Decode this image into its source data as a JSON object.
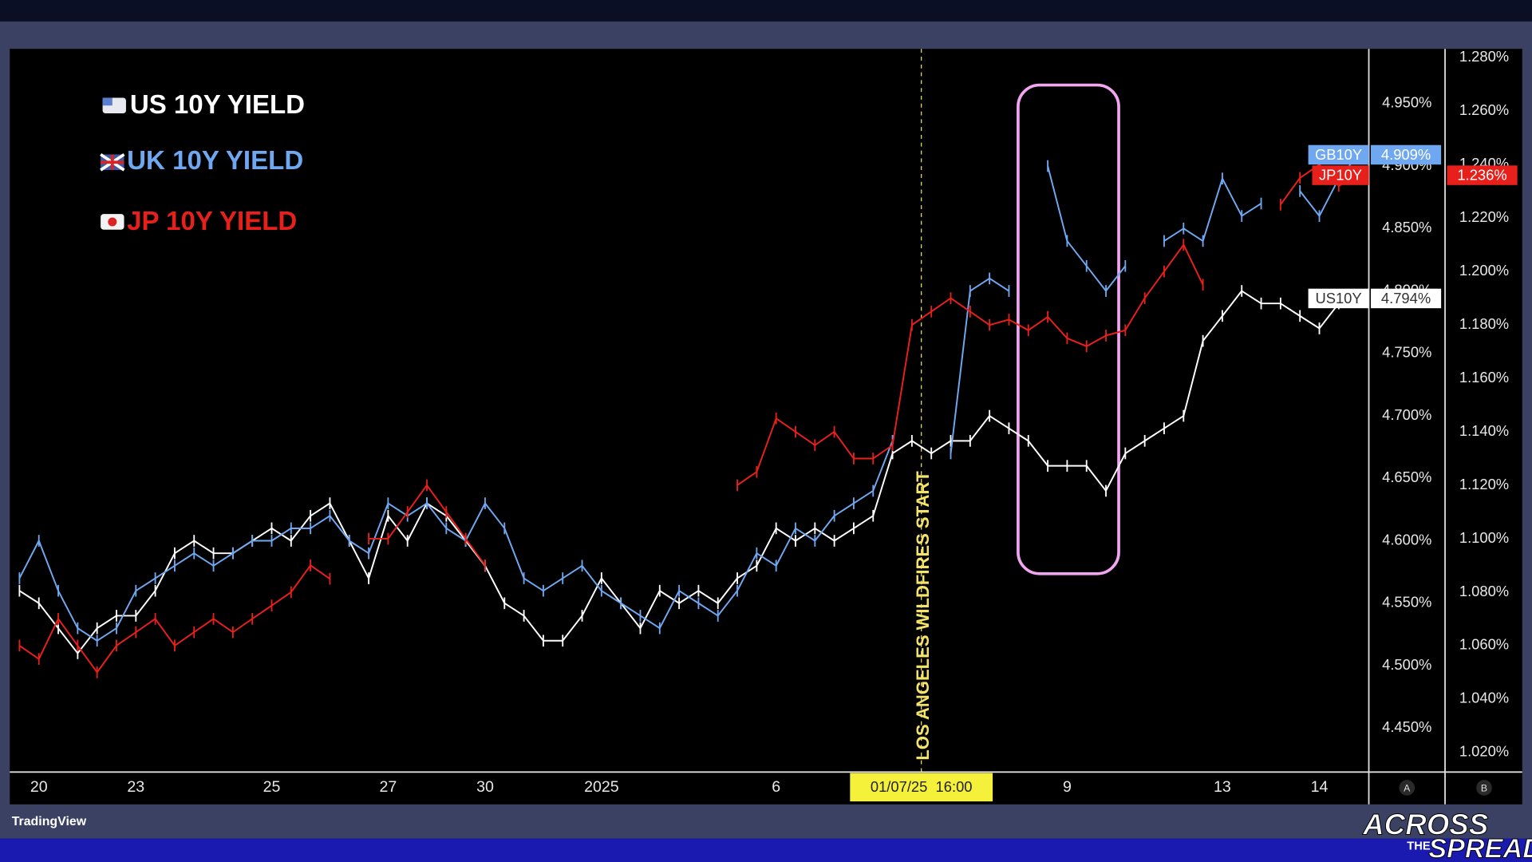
{
  "chart_data": {
    "type": "line",
    "categories": [
      null,
      "20",
      null,
      null,
      null,
      null,
      "23",
      null,
      null,
      null,
      null,
      null,
      null,
      "25",
      null,
      null,
      null,
      null,
      null,
      "27",
      null,
      null,
      null,
      null,
      "30",
      null,
      null,
      null,
      null,
      null,
      "2025",
      null,
      null,
      null,
      null,
      null,
      null,
      null,
      null,
      "6",
      null,
      null,
      null,
      null,
      null,
      null,
      null,
      null,
      null,
      null,
      null,
      null,
      null,
      null,
      "9",
      null,
      null,
      null,
      null,
      null,
      null,
      null,
      "13",
      null,
      null,
      null,
      null,
      "14",
      null,
      null
    ],
    "series": [
      {
        "name": "US 10Y YIELD",
        "tag": "US10Y",
        "last_label": "4.794%",
        "color": "#ffffff",
        "tag_text": "#333333",
        "axis": "y",
        "values": [
          4.56,
          4.55,
          4.53,
          4.51,
          4.53,
          4.54,
          4.54,
          4.56,
          4.59,
          4.6,
          4.59,
          4.59,
          4.6,
          4.61,
          4.6,
          4.62,
          4.63,
          4.6,
          4.57,
          4.62,
          4.6,
          4.63,
          4.62,
          4.6,
          4.58,
          4.55,
          4.54,
          4.52,
          4.52,
          4.54,
          4.57,
          4.55,
          4.53,
          4.56,
          4.55,
          4.56,
          4.55,
          4.57,
          4.58,
          4.61,
          4.6,
          4.61,
          4.6,
          4.61,
          4.62,
          4.67,
          4.68,
          4.67,
          4.68,
          4.68,
          4.7,
          4.69,
          4.68,
          4.66,
          4.66,
          4.66,
          4.64,
          4.67,
          4.68,
          4.69,
          4.7,
          4.76,
          4.78,
          4.8,
          4.79,
          4.79,
          4.78,
          4.77,
          4.79,
          4.794
        ]
      },
      {
        "name": "UK 10Y YIELD",
        "tag": "GB10Y",
        "last_label": "4.909%",
        "color": "#6fa8f0",
        "tag_text": "#ffffff",
        "axis": "y",
        "values": [
          4.57,
          4.6,
          4.56,
          4.53,
          4.52,
          4.53,
          4.56,
          4.57,
          4.58,
          4.59,
          4.58,
          4.59,
          4.6,
          4.6,
          4.61,
          4.61,
          4.62,
          4.6,
          4.59,
          4.63,
          4.62,
          4.63,
          4.61,
          4.6,
          4.63,
          4.61,
          4.57,
          4.56,
          4.57,
          4.58,
          4.56,
          4.55,
          4.54,
          4.53,
          4.56,
          4.55,
          4.54,
          4.56,
          4.59,
          4.58,
          4.61,
          4.6,
          4.62,
          4.63,
          4.64,
          4.68,
          null,
          null,
          4.67,
          4.8,
          4.81,
          4.8,
          null,
          4.9,
          4.84,
          4.82,
          4.8,
          4.82,
          null,
          4.84,
          4.85,
          4.84,
          4.89,
          4.86,
          4.87,
          null,
          4.88,
          4.86,
          4.89,
          4.909
        ]
      },
      {
        "name": "JP 10Y YIELD",
        "tag": "JP10Y",
        "last_label": "1.236%",
        "color": "#e8201c",
        "tag_text": "#ffffff",
        "axis": "y2",
        "values": [
          1.06,
          1.055,
          1.07,
          1.06,
          1.05,
          1.06,
          1.065,
          1.07,
          1.06,
          1.065,
          1.07,
          1.065,
          1.07,
          1.075,
          1.08,
          1.09,
          1.085,
          null,
          1.1,
          1.1,
          1.11,
          1.12,
          1.11,
          1.1,
          1.09,
          null,
          null,
          null,
          null,
          null,
          null,
          null,
          null,
          null,
          null,
          null,
          null,
          1.12,
          1.125,
          1.145,
          1.14,
          1.135,
          1.14,
          1.13,
          1.13,
          1.135,
          1.18,
          1.185,
          1.19,
          1.185,
          1.18,
          1.182,
          1.178,
          1.183,
          1.175,
          1.172,
          1.176,
          1.178,
          1.19,
          1.2,
          1.21,
          1.195,
          null,
          null,
          null,
          1.225,
          1.235,
          1.24,
          1.232,
          1.236
        ]
      }
    ],
    "ylim": [
      4.4164,
      4.9938
    ],
    "yticks": [
      {
        "value": 4.95,
        "label": "4.950%"
      },
      {
        "value": 4.9,
        "label": "4.900%"
      },
      {
        "value": 4.85,
        "label": "4.850%"
      },
      {
        "value": 4.8,
        "label": "4.800%"
      },
      {
        "value": 4.75,
        "label": "4.750%"
      },
      {
        "value": 4.7,
        "label": "4.700%"
      },
      {
        "value": 4.65,
        "label": "4.650%"
      },
      {
        "value": 4.6,
        "label": "4.600%"
      },
      {
        "value": 4.55,
        "label": "4.550%"
      },
      {
        "value": 4.5,
        "label": "4.500%"
      },
      {
        "value": 4.45,
        "label": "4.450%"
      }
    ],
    "y2lim": [
      1.0134,
      1.2833
    ],
    "y2ticks": [
      {
        "value": 1.28,
        "label": "1.280%"
      },
      {
        "value": 1.26,
        "label": "1.260%"
      },
      {
        "value": 1.24,
        "label": "1.240%"
      },
      {
        "value": 1.22,
        "label": "1.220%"
      },
      {
        "value": 1.2,
        "label": "1.200%"
      },
      {
        "value": 1.18,
        "label": "1.180%"
      },
      {
        "value": 1.16,
        "label": "1.160%"
      },
      {
        "value": 1.14,
        "label": "1.140%"
      },
      {
        "value": 1.12,
        "label": "1.120%"
      },
      {
        "value": 1.1,
        "label": "1.100%"
      },
      {
        "value": 1.08,
        "label": "1.080%"
      },
      {
        "value": 1.06,
        "label": "1.060%"
      },
      {
        "value": 1.04,
        "label": "1.040%"
      },
      {
        "value": 1.02,
        "label": "1.020%"
      }
    ],
    "axis_names": [
      "A",
      "B"
    ],
    "crosshair": {
      "label": "01/07/25  16:00",
      "annotation": "LOS ANGELES WILDFIRES START"
    },
    "grid": false
  },
  "branding": {
    "platform": "TradingView",
    "logo": [
      "ACROSS",
      "THE",
      "SPREAD"
    ]
  }
}
